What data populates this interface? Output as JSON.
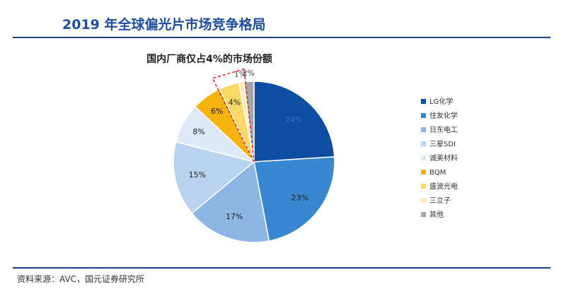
{
  "page": {
    "title": "2019 年全球偏光片市场竞争格局",
    "source": "资料来源：AVC，国元证券研究所"
  },
  "chart_data": {
    "type": "pie",
    "title": "国内厂商仅占4%的市场份额",
    "legend_position": "right",
    "slices": [
      {
        "name": "LG化学",
        "value": 24,
        "label": "24%",
        "color": "#0b4ea2"
      },
      {
        "name": "住友化学",
        "value": 23,
        "label": "23%",
        "color": "#3a87d1"
      },
      {
        "name": "日东电工",
        "value": 17,
        "label": "17%",
        "color": "#8db6e4"
      },
      {
        "name": "三星SDI",
        "value": 15,
        "label": "15%",
        "color": "#b9d3ef"
      },
      {
        "name": "诚美材料",
        "value": 8,
        "label": "8%",
        "color": "#dde9f7"
      },
      {
        "name": "BQM",
        "value": 6,
        "label": "6%",
        "color": "#f6b20f"
      },
      {
        "name": "盛波光电",
        "value": 4,
        "label": "4%",
        "color": "#fbd768"
      },
      {
        "name": "三立子",
        "value": 1,
        "label": "1%",
        "color": "#fdebb0"
      },
      {
        "name": "其他",
        "value": 2,
        "label": "2%",
        "color": "#a6a6a6"
      }
    ]
  }
}
